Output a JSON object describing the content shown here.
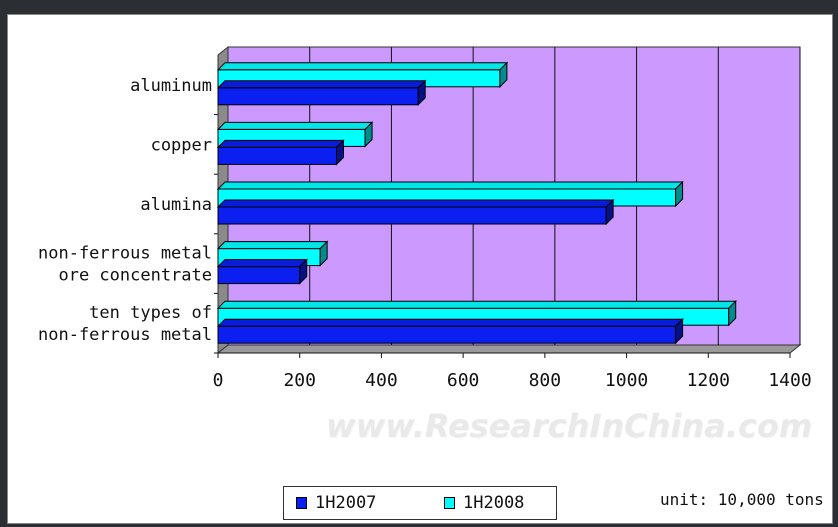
{
  "chart_data": {
    "type": "bar",
    "orientation": "horizontal",
    "categories": [
      "aluminum",
      "copper",
      "alumina",
      "non-ferrous metal\nore concentrate",
      "ten types of\nnon-ferrous metal"
    ],
    "series": [
      {
        "name": "1H2007",
        "values": [
          490,
          290,
          950,
          200,
          1120
        ],
        "color": "#0a1ff0"
      },
      {
        "name": "1H2008",
        "values": [
          690,
          360,
          1120,
          250,
          1250
        ],
        "color": "#00ffff"
      }
    ],
    "xlim": [
      0,
      1400
    ],
    "xticks": [
      0,
      200,
      400,
      600,
      800,
      1000,
      1200,
      1400
    ],
    "grid": true,
    "plot_bg": "#cc99ff",
    "unit_note": "unit: 10,000 tons",
    "watermark": "www.ResearchInChina.com",
    "legend_position": "bottom"
  }
}
